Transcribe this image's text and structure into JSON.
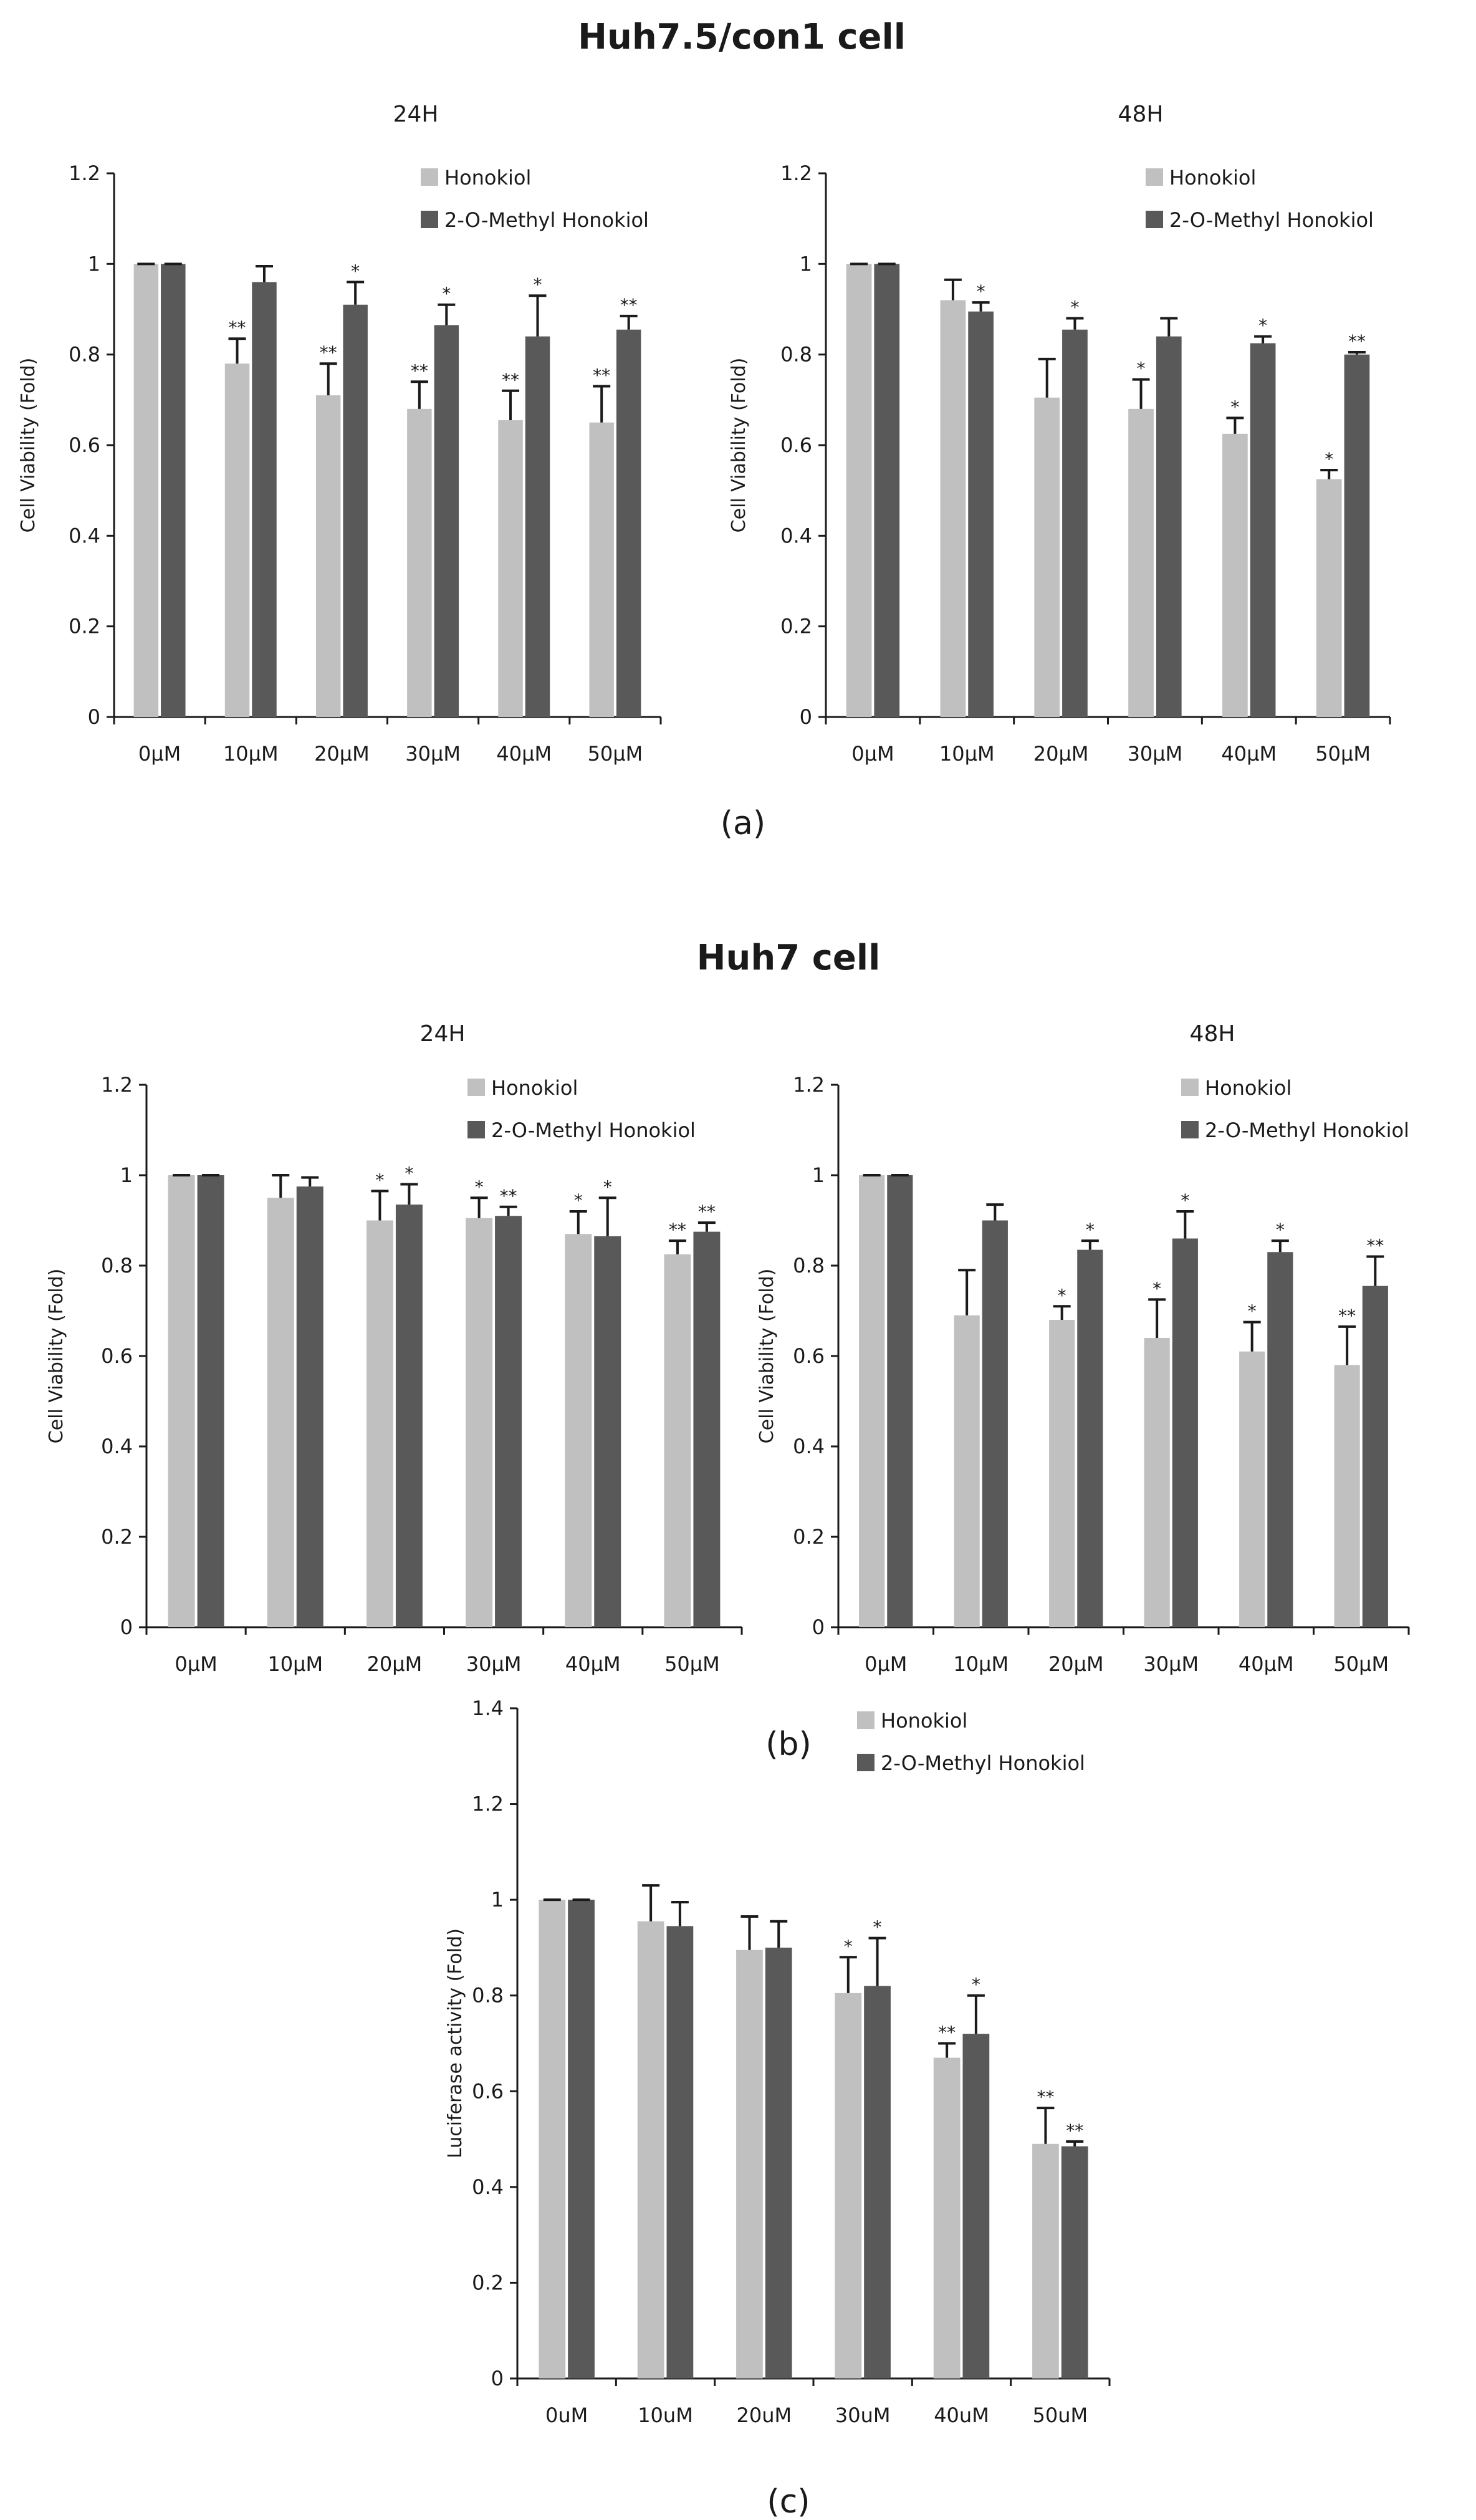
{
  "figure": {
    "section_titles": [
      "Huh7.5/con1 cell",
      "Huh7 cell"
    ],
    "panel_labels": [
      "(a)",
      "(b)",
      "(c)"
    ],
    "colors": {
      "honokiol": "#c0c0c0",
      "methyl": "#595959",
      "axis": "#1a1a1a",
      "text": "#1a1a1a"
    }
  },
  "chart_data": [
    {
      "type": "bar",
      "title": "24H",
      "ylabel": "Cell Viability (Fold)",
      "ylim": [
        0,
        1.2
      ],
      "yticks": [
        0,
        0.2,
        0.4,
        0.6,
        0.8,
        1,
        1.2
      ],
      "legend_position": "top-right",
      "categories": [
        "0μM",
        "10μM",
        "20μM",
        "30μM",
        "40μM",
        "50μM"
      ],
      "series": [
        {
          "name": "Honokiol",
          "color": "#c0c0c0",
          "values": [
            1.0,
            0.78,
            0.71,
            0.68,
            0.655,
            0.65
          ],
          "errors": [
            0,
            0.055,
            0.07,
            0.06,
            0.065,
            0.08
          ],
          "sig": [
            "",
            "**",
            "**",
            "**",
            "**",
            "**"
          ]
        },
        {
          "name": "2-O-Methyl Honokiol",
          "color": "#595959",
          "values": [
            1.0,
            0.96,
            0.91,
            0.865,
            0.84,
            0.855
          ],
          "errors": [
            0,
            0.035,
            0.05,
            0.045,
            0.09,
            0.03
          ],
          "sig": [
            "",
            "",
            "*",
            "*",
            "*",
            "**"
          ]
        }
      ]
    },
    {
      "type": "bar",
      "title": "48H",
      "ylabel": "Cell Viability (Fold)",
      "ylim": [
        0,
        1.2
      ],
      "yticks": [
        0,
        0.2,
        0.4,
        0.6,
        0.8,
        1,
        1.2
      ],
      "legend_position": "top-right",
      "categories": [
        "0μM",
        "10μM",
        "20μM",
        "30μM",
        "40μM",
        "50μM"
      ],
      "series": [
        {
          "name": "Honokiol",
          "color": "#c0c0c0",
          "values": [
            1.0,
            0.92,
            0.705,
            0.68,
            0.625,
            0.525
          ],
          "errors": [
            0,
            0.045,
            0.085,
            0.065,
            0.035,
            0.02
          ],
          "sig": [
            "",
            "",
            "",
            "*",
            "*",
            "*"
          ]
        },
        {
          "name": "2-O-Methyl Honokiol",
          "color": "#595959",
          "values": [
            1.0,
            0.895,
            0.855,
            0.84,
            0.825,
            0.8
          ],
          "errors": [
            0,
            0.02,
            0.025,
            0.04,
            0.015,
            0.005
          ],
          "sig": [
            "",
            "*",
            "*",
            "",
            "*",
            "**"
          ]
        }
      ]
    },
    {
      "type": "bar",
      "title": "24H",
      "ylabel": "Cell Viability (Fold)",
      "ylim": [
        0,
        1.2
      ],
      "yticks": [
        0,
        0.2,
        0.4,
        0.6,
        0.8,
        1,
        1.2
      ],
      "legend_position": "top-right",
      "categories": [
        "0μM",
        "10μM",
        "20μM",
        "30μM",
        "40μM",
        "50μM"
      ],
      "series": [
        {
          "name": "Honokiol",
          "color": "#c0c0c0",
          "values": [
            1.0,
            0.95,
            0.9,
            0.905,
            0.87,
            0.825
          ],
          "errors": [
            0,
            0.05,
            0.065,
            0.045,
            0.05,
            0.03
          ],
          "sig": [
            "",
            "",
            "*",
            "*",
            "*",
            "**"
          ]
        },
        {
          "name": "2-O-Methyl Honokiol",
          "color": "#595959",
          "values": [
            1.0,
            0.975,
            0.935,
            0.91,
            0.865,
            0.875
          ],
          "errors": [
            0,
            0.02,
            0.045,
            0.02,
            0.085,
            0.02
          ],
          "sig": [
            "",
            "",
            "*",
            "**",
            "*",
            "**"
          ]
        }
      ]
    },
    {
      "type": "bar",
      "title": "48H",
      "ylabel": "Cell Viability (Fold)",
      "ylim": [
        0,
        1.2
      ],
      "yticks": [
        0,
        0.2,
        0.4,
        0.6,
        0.8,
        1,
        1.2
      ],
      "legend_position": "top-right",
      "categories": [
        "0μM",
        "10μM",
        "20μM",
        "30μM",
        "40μM",
        "50μM"
      ],
      "series": [
        {
          "name": "Honokiol",
          "color": "#c0c0c0",
          "values": [
            1.0,
            0.69,
            0.68,
            0.64,
            0.61,
            0.58
          ],
          "errors": [
            0,
            0.1,
            0.03,
            0.085,
            0.065,
            0.085
          ],
          "sig": [
            "",
            "",
            "*",
            "*",
            "*",
            "**"
          ]
        },
        {
          "name": "2-O-Methyl Honokiol",
          "color": "#595959",
          "values": [
            1.0,
            0.9,
            0.835,
            0.86,
            0.83,
            0.755
          ],
          "errors": [
            0,
            0.035,
            0.02,
            0.06,
            0.025,
            0.065
          ],
          "sig": [
            "",
            "",
            "*",
            "*",
            "*",
            "**"
          ]
        }
      ]
    },
    {
      "type": "bar",
      "title": "",
      "ylabel": "Luciferase activity (Fold)",
      "ylim": [
        0,
        1.4
      ],
      "yticks": [
        0,
        0.2,
        0.4,
        0.6,
        0.8,
        1,
        1.2,
        1.4
      ],
      "legend_position": "top-right",
      "categories": [
        "0uM",
        "10uM",
        "20uM",
        "30uM",
        "40uM",
        "50uM"
      ],
      "series": [
        {
          "name": "Honokiol",
          "color": "#c0c0c0",
          "values": [
            1.0,
            0.955,
            0.895,
            0.805,
            0.67,
            0.49
          ],
          "errors": [
            0,
            0.075,
            0.07,
            0.075,
            0.03,
            0.075
          ],
          "sig": [
            "",
            "",
            "",
            "*",
            "**",
            "**"
          ]
        },
        {
          "name": "2-O-Methyl Honokiol",
          "color": "#595959",
          "values": [
            1.0,
            0.945,
            0.9,
            0.82,
            0.72,
            0.485
          ],
          "errors": [
            0,
            0.05,
            0.055,
            0.1,
            0.08,
            0.01
          ],
          "sig": [
            "",
            "",
            "",
            "*",
            "*",
            "**"
          ]
        }
      ]
    }
  ]
}
